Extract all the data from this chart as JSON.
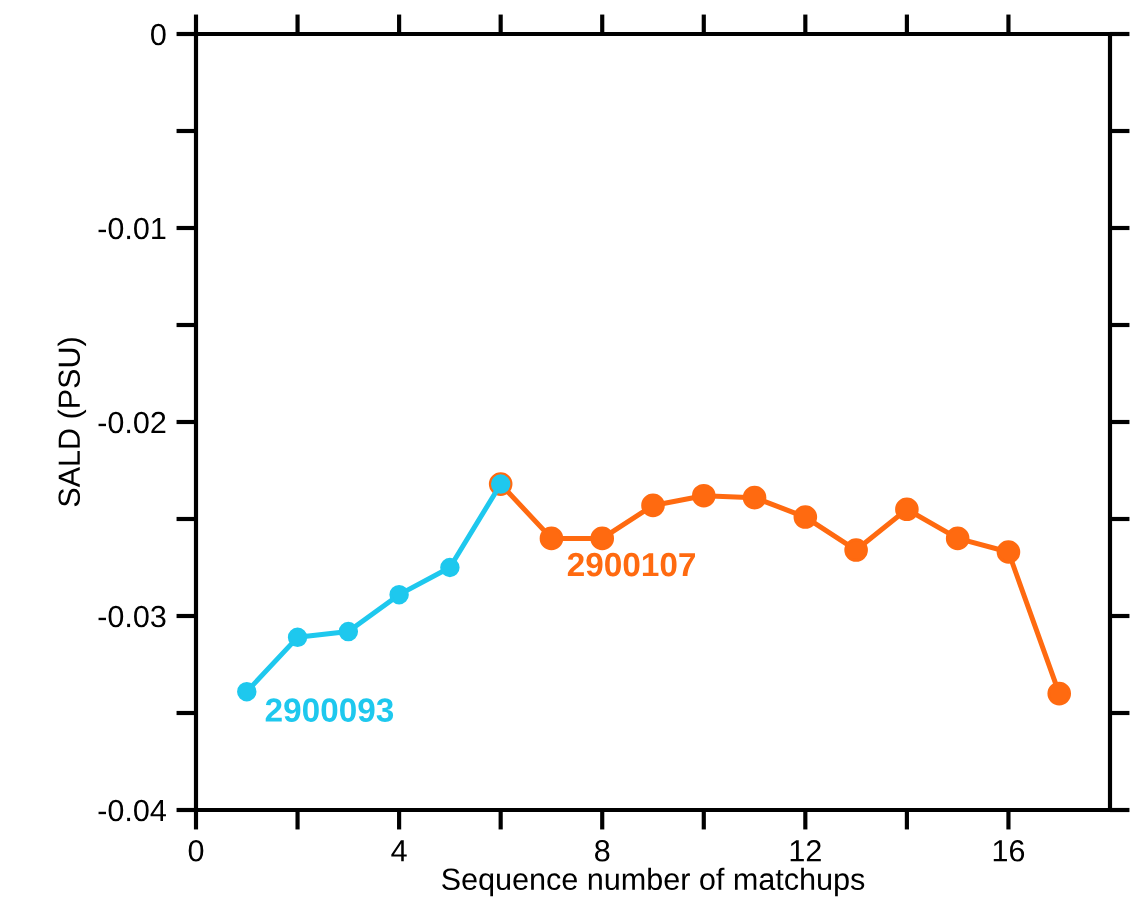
{
  "chart_data": {
    "type": "line",
    "xlabel": "Sequence number of matchups",
    "ylabel": "SALD (PSU)",
    "marker": "circle",
    "grid": false,
    "legend": false,
    "xlim": [
      0,
      18
    ],
    "xticks": [
      0,
      {
        "value": 2,
        "label": null
      },
      4,
      {
        "value": 6,
        "label": null
      },
      8,
      {
        "value": 10,
        "label": null
      },
      12,
      {
        "value": 14,
        "label": null
      },
      16
    ],
    "ylim": [
      -0.04,
      0
    ],
    "yticks": [
      -0.04,
      {
        "value": -0.035,
        "label": null
      },
      -0.03,
      {
        "value": -0.025,
        "label": null
      },
      -0.02,
      {
        "value": -0.015,
        "label": null
      },
      -0.01,
      {
        "value": -0.005,
        "label": null
      },
      0
    ],
    "series": [
      {
        "name": "2900093",
        "color": "#1ec8ee",
        "x": [
          1,
          2,
          3,
          4,
          5,
          6
        ],
        "values": [
          -0.0339,
          -0.0311,
          -0.0308,
          -0.0289,
          -0.0275,
          -0.0232
        ]
      },
      {
        "name": "2900107",
        "color": "#ff6a10",
        "x": [
          6,
          7,
          8,
          9,
          10,
          11,
          12,
          13,
          14,
          15,
          16,
          17
        ],
        "values": [
          -0.0232,
          -0.026,
          -0.026,
          -0.0243,
          -0.0238,
          -0.0239,
          -0.0249,
          -0.0266,
          -0.0245,
          -0.026,
          -0.0267,
          -0.034
        ]
      }
    ]
  }
}
